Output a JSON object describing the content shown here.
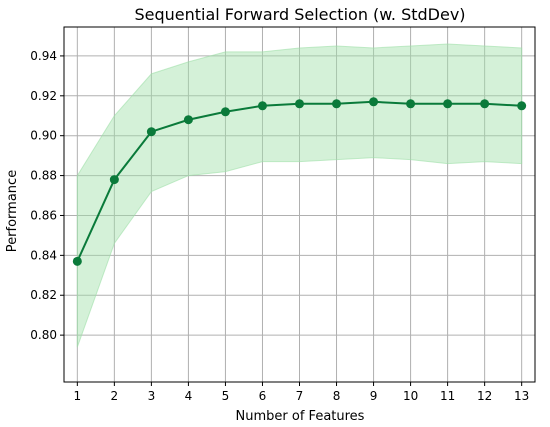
{
  "chart_data": {
    "type": "line",
    "title": "Sequential Forward Selection (w. StdDev)",
    "xlabel": "Number of Features",
    "ylabel": "Performance",
    "x": [
      1,
      2,
      3,
      4,
      5,
      6,
      7,
      8,
      9,
      10,
      11,
      12,
      13
    ],
    "series": [
      {
        "values": [
          0.837,
          0.878,
          0.902,
          0.908,
          0.912,
          0.915,
          0.916,
          0.916,
          0.917,
          0.916,
          0.916,
          0.916,
          0.915
        ],
        "upper": [
          0.88,
          0.91,
          0.931,
          0.937,
          0.942,
          0.942,
          0.944,
          0.945,
          0.944,
          0.945,
          0.946,
          0.945,
          0.944
        ],
        "lower": [
          0.794,
          0.846,
          0.872,
          0.88,
          0.882,
          0.887,
          0.887,
          0.888,
          0.889,
          0.888,
          0.886,
          0.887,
          0.886
        ]
      }
    ],
    "xlim": [
      0.64,
      13.36
    ],
    "ylim": [
      0.7765,
      0.9545
    ],
    "yticks": [
      "0.80",
      "0.82",
      "0.84",
      "0.86",
      "0.88",
      "0.90",
      "0.92",
      "0.94"
    ],
    "ytick_values": [
      0.8,
      0.82,
      0.84,
      0.86,
      0.88,
      0.9,
      0.92,
      0.94
    ],
    "xticks": [
      "1",
      "2",
      "3",
      "4",
      "5",
      "6",
      "7",
      "8",
      "9",
      "10",
      "11",
      "12",
      "13"
    ],
    "grid": true,
    "colors": {
      "line": "#0a7a3a",
      "band": "#9fdfa8",
      "grid": "#b0b0b0"
    }
  }
}
